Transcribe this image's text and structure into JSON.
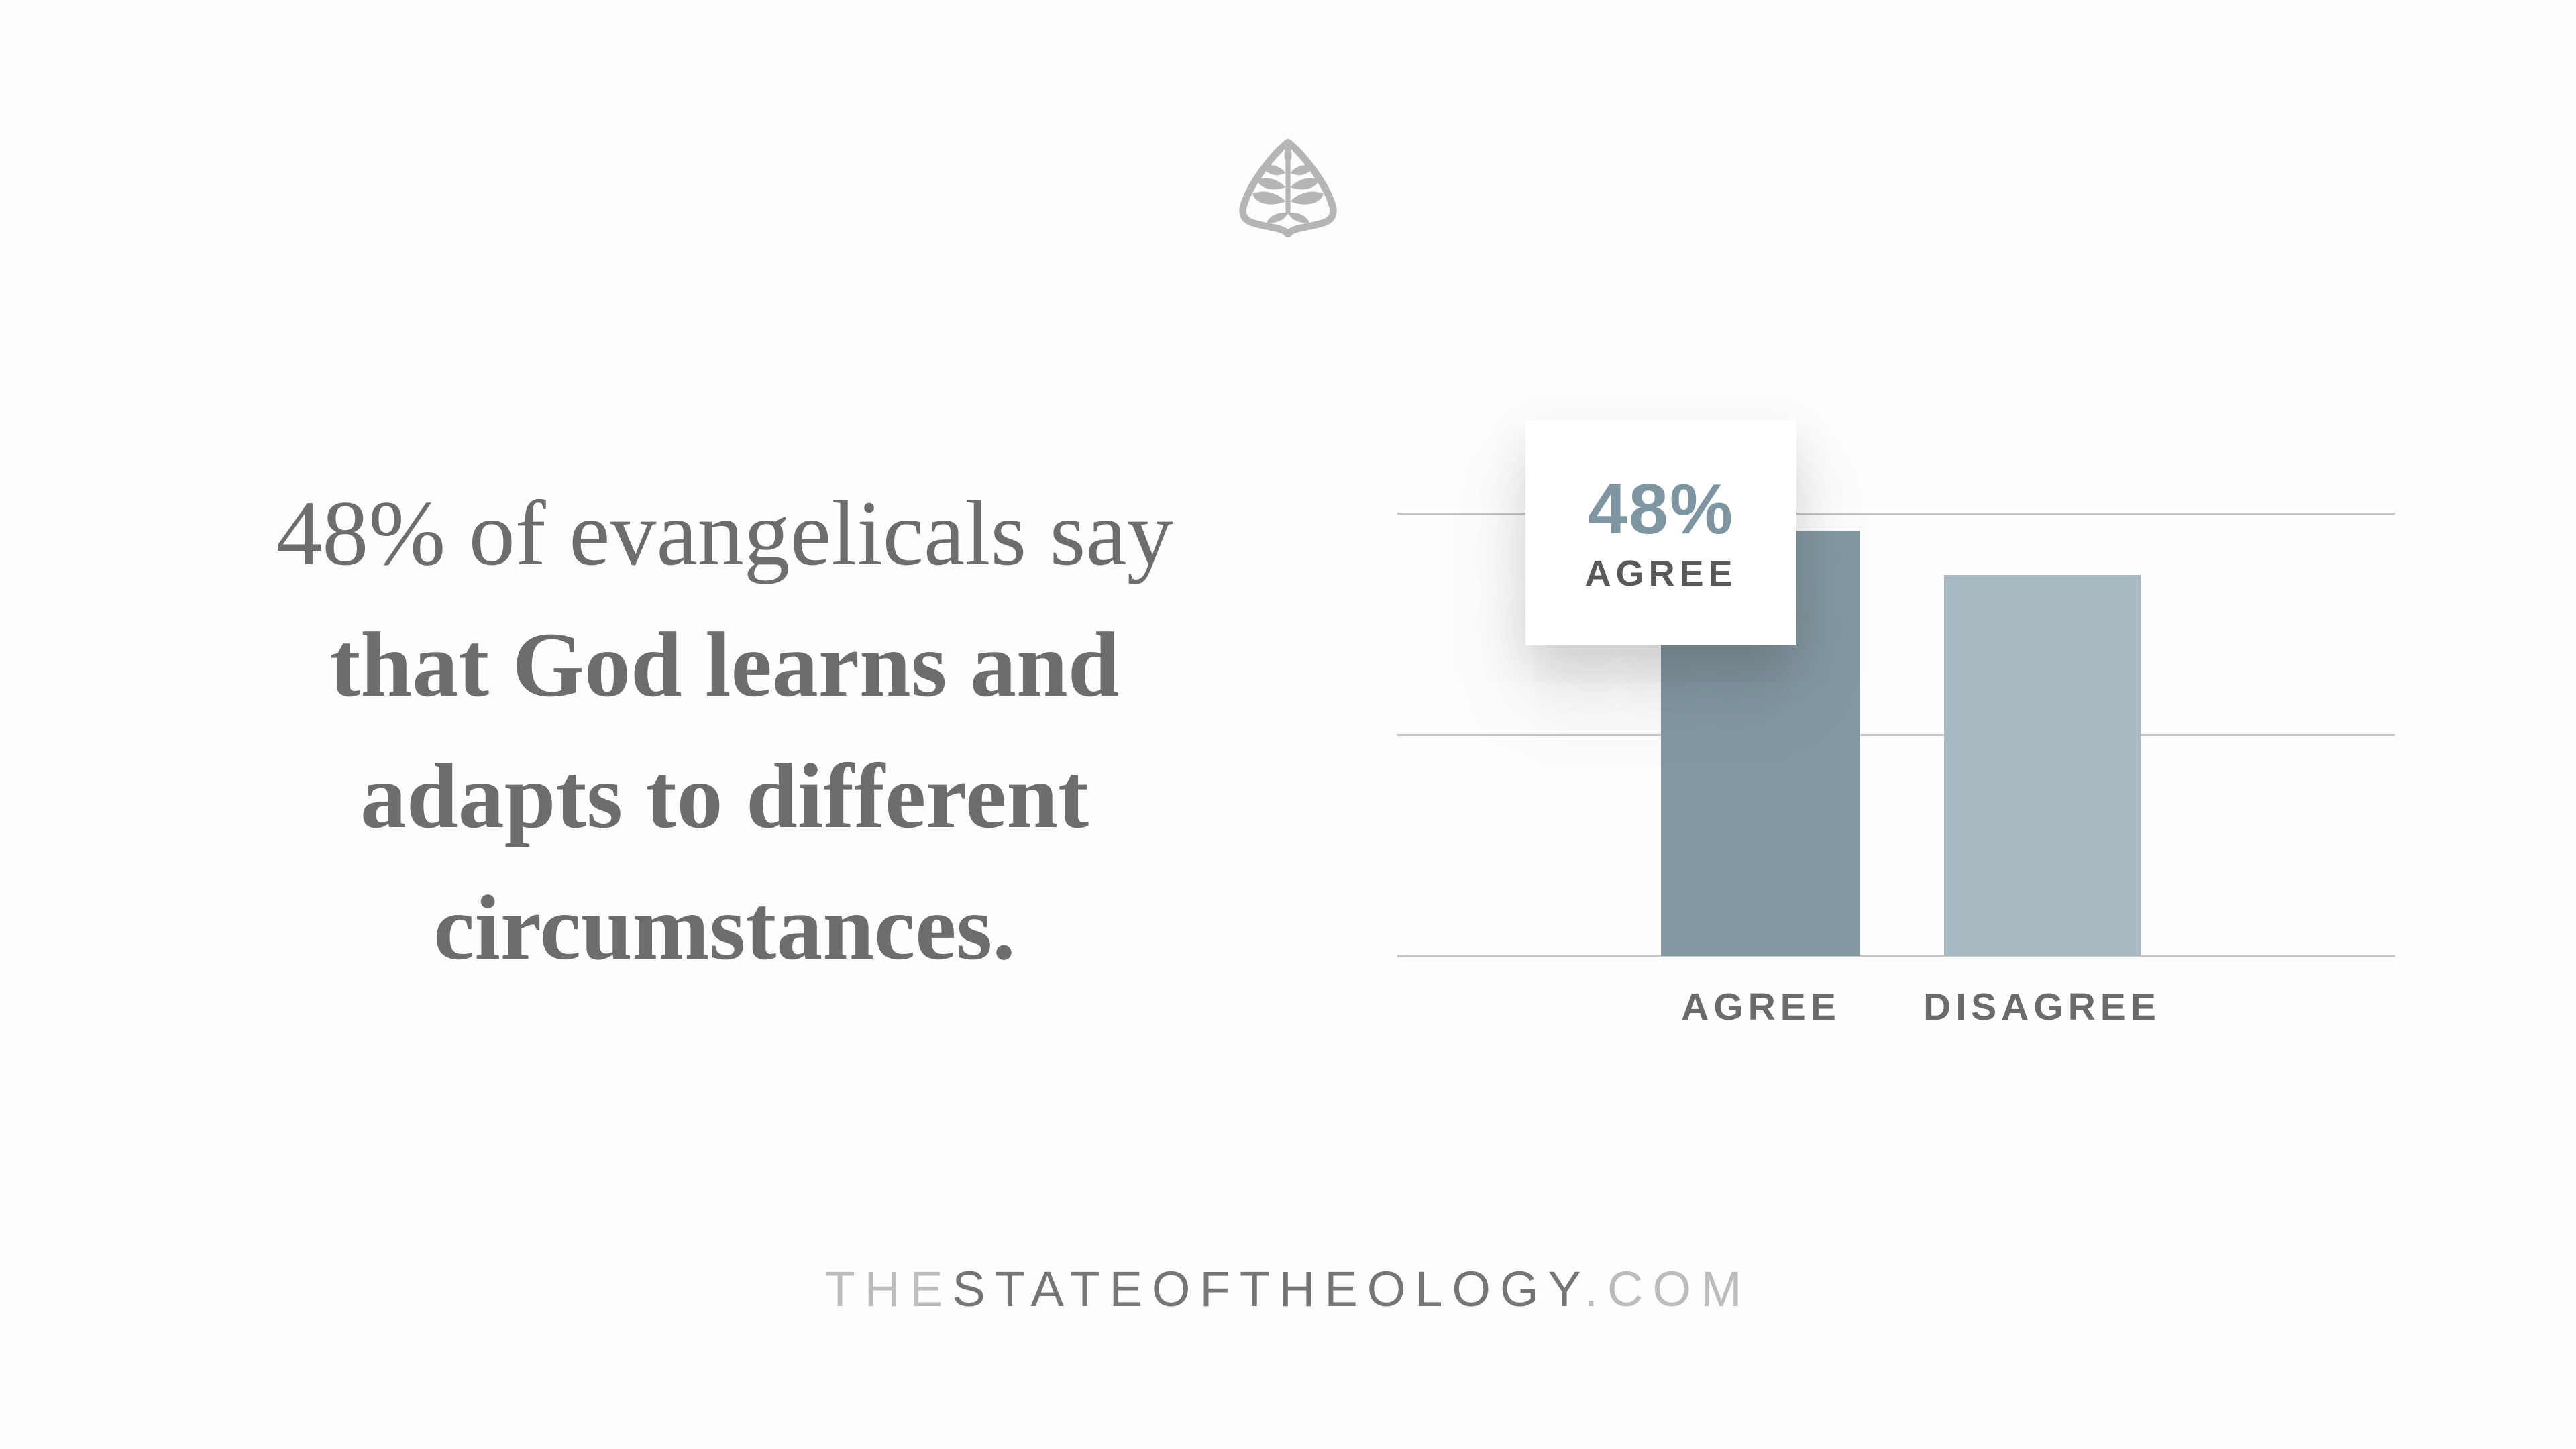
{
  "headline": {
    "lines": [
      "48% of evangelicals say",
      "that God learns and",
      "adapts to different",
      "circumstances."
    ]
  },
  "logo": {
    "name": "Ligonier tree emblem"
  },
  "chart_data": {
    "type": "bar",
    "categories": [
      "AGREE",
      "DISAGREE"
    ],
    "values": [
      48,
      43
    ],
    "ylim": [
      0,
      50
    ],
    "gridline_values": [
      0,
      25,
      50
    ],
    "grid": true,
    "legend": false,
    "bar_colors": [
      "#8498a2",
      "#a9bbc2"
    ],
    "callout": {
      "value": "48%",
      "label": "AGREE"
    }
  },
  "footer": {
    "segment_the": "THE",
    "segment_main": "STATEOFTHEOLOGY",
    "segment_com": ".COM"
  },
  "colors": {
    "background": "#fdfdfd",
    "logo": "#b5b5b5",
    "headline": "#6d6d6d",
    "gridline": "#c5c5c5",
    "axis_label": "#6a6b6d",
    "callout_value": "#7d96a1",
    "callout_label": "#58595b",
    "footer_light": "#bcbcbc",
    "footer_dark": "#757575"
  }
}
